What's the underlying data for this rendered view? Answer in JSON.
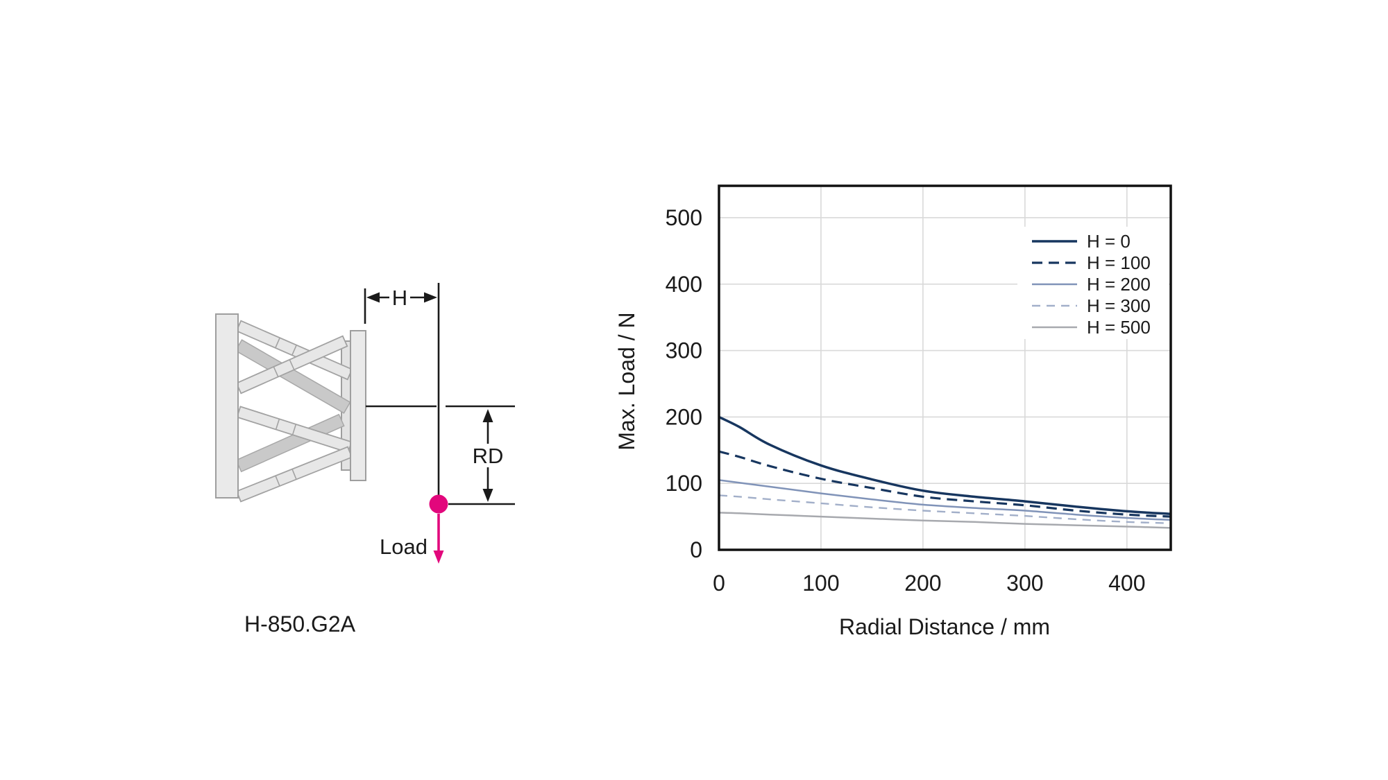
{
  "page": {
    "background": "#ffffff"
  },
  "diagram": {
    "caption": "H-850.G2A",
    "labels": {
      "h": "H",
      "rd": "RD",
      "load": "Load"
    },
    "colors": {
      "accent_pink": "#e2077c",
      "line": "#1a1a1a",
      "plate_fill": "#eaeaea",
      "strut_dark_fill": "#c9c9c9"
    }
  },
  "chart_data": {
    "type": "line",
    "title": "",
    "xlabel": "Radial Distance / mm",
    "ylabel": "Max. Load / N",
    "xlim": [
      0,
      443
    ],
    "ylim": [
      0,
      548
    ],
    "xticks": [
      0,
      100,
      200,
      300,
      400
    ],
    "yticks": [
      0,
      100,
      200,
      300,
      400,
      500
    ],
    "grid": true,
    "grid_color": "#d9d9d9",
    "frame_color": "#111111",
    "legend_position": "top-right",
    "x": [
      0,
      20,
      50,
      100,
      150,
      200,
      250,
      300,
      350,
      400,
      443
    ],
    "series": [
      {
        "name": "H = 0",
        "values": [
          200,
          185,
          158,
          127,
          106,
          89,
          80,
          73,
          65,
          58,
          54
        ],
        "color": "#17365f",
        "dash": "none",
        "width": 3.5
      },
      {
        "name": "H = 100",
        "values": [
          148,
          140,
          126,
          107,
          93,
          80,
          73,
          67,
          59,
          53,
          50
        ],
        "color": "#17365f",
        "dash": "15 9",
        "width": 3.2
      },
      {
        "name": "H = 200",
        "values": [
          105,
          101,
          95,
          85,
          76,
          68,
          63,
          59,
          53,
          48,
          45
        ],
        "color": "#8093b8",
        "dash": "none",
        "width": 2.5
      },
      {
        "name": "H = 300",
        "values": [
          82,
          80,
          76,
          70,
          64,
          59,
          55,
          51,
          46,
          42,
          40
        ],
        "color": "#a2afc9",
        "dash": "12 9",
        "width": 2.4
      },
      {
        "name": "H = 500",
        "values": [
          56,
          55,
          53,
          50,
          47,
          44,
          42,
          39,
          37,
          35,
          33
        ],
        "color": "#a7a9ae",
        "dash": "none",
        "width": 2.5
      }
    ]
  }
}
